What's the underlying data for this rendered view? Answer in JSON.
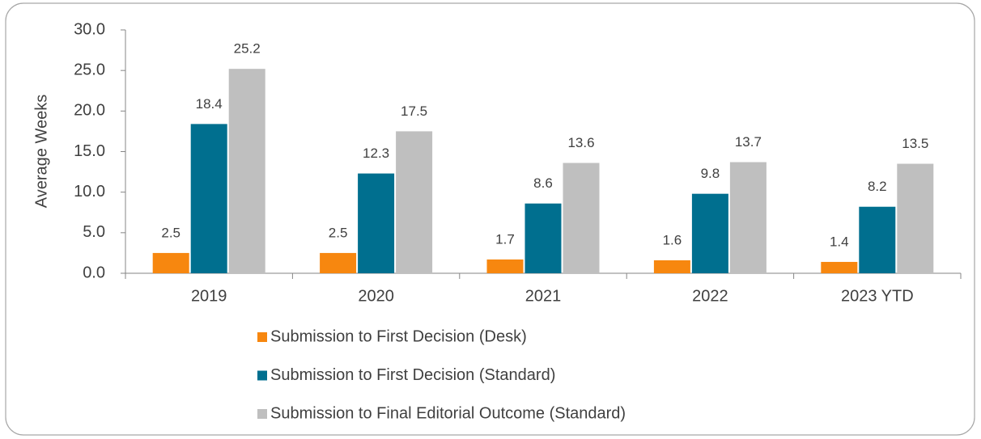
{
  "chart_data": {
    "type": "bar",
    "y_label": "Average Weeks",
    "categories": [
      "2019",
      "2020",
      "2021",
      "2022",
      "2023 YTD"
    ],
    "series": [
      {
        "name": "Submission to First Decision (Desk)",
        "color": "#f7870f",
        "values": [
          2.5,
          2.5,
          1.7,
          1.6,
          1.4
        ]
      },
      {
        "name": "Submission to First Decision (Standard)",
        "color": "#006f8f",
        "values": [
          18.4,
          12.3,
          8.6,
          9.8,
          8.2
        ]
      },
      {
        "name": "Submission to Final Editorial Outcome (Standard)",
        "color": "#bfbfbf",
        "values": [
          25.2,
          17.5,
          13.6,
          13.7,
          13.5
        ]
      }
    ],
    "ylim": [
      0,
      30
    ],
    "yticks": [
      {
        "value": 0,
        "label": "0.0"
      },
      {
        "value": 5,
        "label": "5.0"
      },
      {
        "value": 10,
        "label": "10.0"
      },
      {
        "value": 15,
        "label": "15.0"
      },
      {
        "value": 20,
        "label": "20.0"
      },
      {
        "value": 25,
        "label": "25.0"
      },
      {
        "value": 30,
        "label": "30.0"
      }
    ],
    "grid": false,
    "legend": "bottom"
  }
}
